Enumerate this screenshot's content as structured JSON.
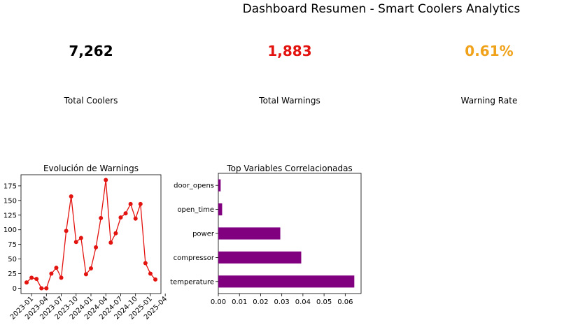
{
  "title": "Dashboard Resumen - Smart Coolers Analytics",
  "kpis": [
    {
      "value": "7,262",
      "label": "Total Coolers",
      "color": "#000000"
    },
    {
      "value": "1,883",
      "label": "Total Warnings",
      "color": "#e3130f"
    },
    {
      "value": "0.61%",
      "label": "Warning Rate",
      "color": "#f0a21a"
    }
  ],
  "chart_data": [
    {
      "type": "line",
      "title": "Evolución de Warnings",
      "xlabel": "",
      "ylabel": "",
      "color": "#e3130f",
      "x": [
        "2022-12",
        "2023-01",
        "2023-02",
        "2023-03",
        "2023-04",
        "2023-05",
        "2023-06",
        "2023-07",
        "2023-08",
        "2023-09",
        "2023-10",
        "2023-11",
        "2023-12",
        "2024-01",
        "2024-02",
        "2024-03",
        "2024-04",
        "2024-05",
        "2024-06",
        "2024-07",
        "2024-08",
        "2024-09",
        "2024-10",
        "2024-11",
        "2024-12",
        "2025-01",
        "2025-02"
      ],
      "values": [
        10,
        18,
        16,
        0,
        0,
        25,
        35,
        18,
        98,
        157,
        79,
        86,
        24,
        34,
        70,
        120,
        185,
        78,
        94,
        121,
        128,
        144,
        119,
        144,
        43,
        25,
        15
      ],
      "xticks": [
        "2023-01",
        "2023-04",
        "2023-07",
        "2023-10",
        "2024-01",
        "2024-04",
        "2024-07",
        "2024-10",
        "2025-01",
        "2025-04"
      ],
      "yticks": [
        0,
        25,
        50,
        75,
        100,
        125,
        150,
        175
      ],
      "ylim": [
        -9,
        194
      ],
      "grid": false
    },
    {
      "type": "bar",
      "orientation": "horizontal",
      "title": "Top Variables Correlacionadas",
      "xlabel": "",
      "ylabel": "",
      "color": "#800080",
      "categories": [
        "temperature",
        "compressor",
        "power",
        "open_time",
        "door_opens"
      ],
      "values": [
        0.0643,
        0.0392,
        0.0293,
        0.0018,
        0.0011
      ],
      "xticks": [
        "0.00",
        "0.01",
        "0.02",
        "0.03",
        "0.04",
        "0.05",
        "0.06"
      ],
      "xlim": [
        0,
        0.0675
      ],
      "grid": false
    }
  ]
}
